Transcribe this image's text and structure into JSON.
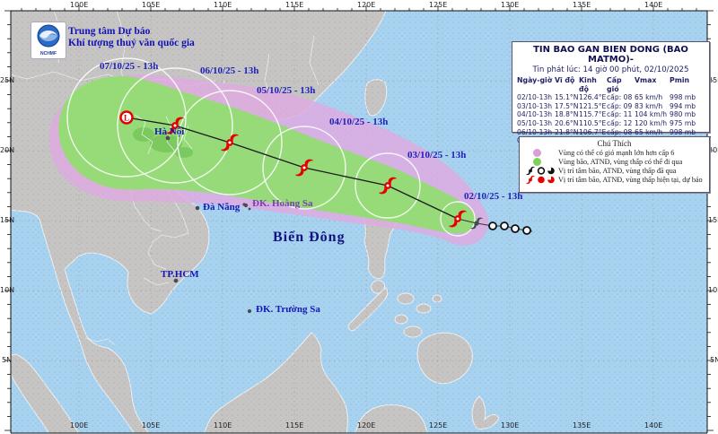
{
  "colors": {
    "sea": "#a7d3f1",
    "land": "#c6c5c3",
    "cone_wind_gt6": "#dfa9e0",
    "cone_track": "#8fdf6d",
    "storm_symbol": "#e60000",
    "past_symbol": "#474752",
    "label_navy": "#1717b4"
  },
  "agency": {
    "line1": "Trung tâm Dự báo",
    "line2": "Khí tượng thuỷ văn quốc gia",
    "logo_text": "NCHMF"
  },
  "info_box": {
    "title": "TIN BAO GAN BIEN DONG (BAO MATMO)-",
    "issued": "Tin phát lúc: 14 giờ 00 phút, 02/10/2025",
    "columns": [
      "Ngày-giờ",
      "Vĩ độ",
      "Kinh độ",
      "Cấp gió",
      "Vmax",
      "Pmin"
    ],
    "rows": [
      {
        "time": "02/10-13h",
        "lat": "15.1°N",
        "lon": "126.4°E",
        "cat": "cấp: 08",
        "vmax": "65 km/h",
        "pmin": "998 mb"
      },
      {
        "time": "03/10-13h",
        "lat": "17.5°N",
        "lon": "121.5°E",
        "cat": "cấp: 09",
        "vmax": "83 km/h",
        "pmin": "994 mb"
      },
      {
        "time": "04/10-13h",
        "lat": "18.8°N",
        "lon": "115.7°E",
        "cat": "cấp: 11",
        "vmax": "104 km/h",
        "pmin": "980 mb"
      },
      {
        "time": "05/10-13h",
        "lat": "20.6°N",
        "lon": "110.5°E",
        "cat": "cấp: 12",
        "vmax": "120 km/h",
        "pmin": "975 mb"
      },
      {
        "time": "06/10-13h",
        "lat": "21.8°N",
        "lon": "106.7°E",
        "cat": "cấp: 08",
        "vmax": "65 km/h",
        "pmin": "998 mb"
      },
      {
        "time": "07/10-13h",
        "lat": "22.4°N",
        "lon": "103.3°E",
        "cat": "cấp: <6",
        "vmax": "37 km/h",
        "pmin": "1004 mb"
      }
    ]
  },
  "legend": {
    "title": "Chú Thích",
    "items": [
      {
        "label": "Vùng có thể có gió mạnh lớn hơn cấp 6"
      },
      {
        "label": "Vùng bão, ATNĐ, vùng thấp có thể đi qua"
      },
      {
        "label": "Vị trí tâm bão, ATNĐ, vùng thấp đã qua"
      },
      {
        "label": "Vị trí tâm bão, ATNĐ, vùng thấp hiện tại, dự báo"
      }
    ]
  },
  "map": {
    "sea_label": "Biển Đông",
    "cities": [
      {
        "name": "Hà Nội"
      },
      {
        "name": "Đà Nẵng"
      },
      {
        "name": "TP.HCM"
      }
    ],
    "islands": [
      {
        "name": "ĐK. Hoàng Sa"
      },
      {
        "name": "ĐK. Trường Sa"
      }
    ],
    "track_dates": [
      "07/10/25 - 13h",
      "06/10/25 - 13h",
      "05/10/25 - 13h",
      "04/10/25 - 13h",
      "03/10/25 - 13h",
      "02/10/25 - 13h"
    ]
  },
  "axes": {
    "lon": [
      "100E",
      "105E",
      "110E",
      "115E",
      "120E",
      "125E",
      "130E",
      "135E",
      "140E"
    ],
    "lat": [
      "25N",
      "20N",
      "15N",
      "10N",
      "5N"
    ]
  }
}
